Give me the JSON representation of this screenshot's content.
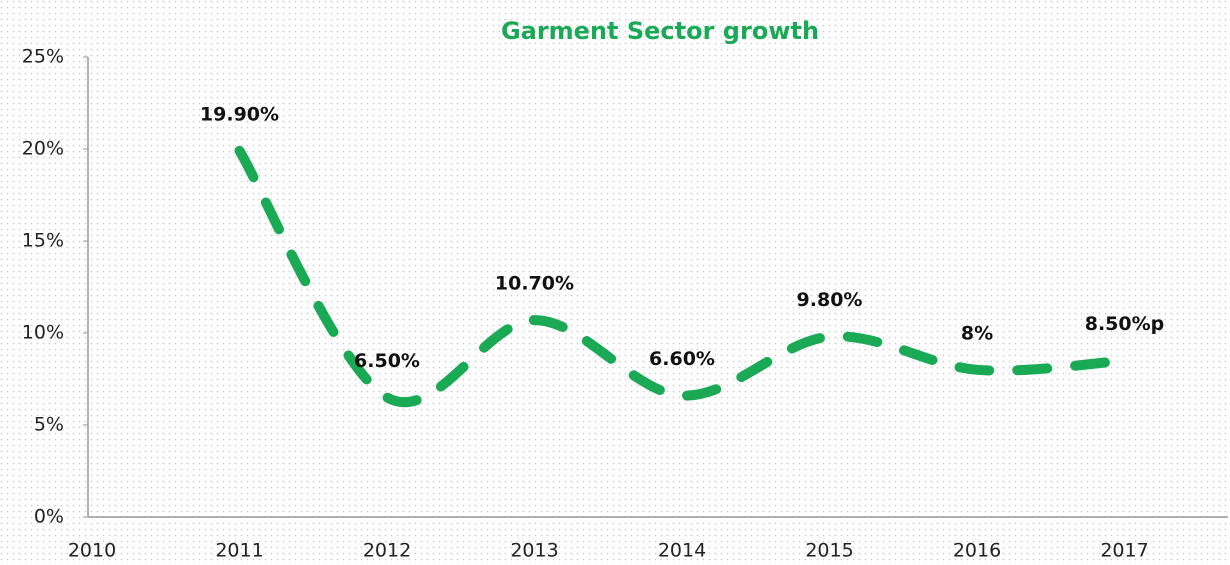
{
  "chart_data": {
    "type": "line",
    "title": "Garment Sector growth",
    "categories": [
      "2010",
      "2011",
      "2012",
      "2013",
      "2014",
      "2015",
      "2016",
      "2017"
    ],
    "series": [
      {
        "name": "Garment Sector growth",
        "color": "#1aaa55",
        "values": [
          null,
          19.9,
          6.5,
          10.7,
          6.6,
          9.8,
          8,
          8.5
        ],
        "value_labels": [
          null,
          "19.90%",
          "6.50%",
          "10.70%",
          "6.60%",
          "9.80%",
          "8%",
          "8.50%p"
        ]
      }
    ],
    "ylim": [
      0,
      25
    ],
    "yticks": [
      {
        "value": 0,
        "label": "0%"
      },
      {
        "value": 5,
        "label": "5%"
      },
      {
        "value": 10,
        "label": "10%"
      },
      {
        "value": 15,
        "label": "15%"
      },
      {
        "value": 20,
        "label": "20%"
      },
      {
        "value": 25,
        "label": "25%"
      }
    ],
    "grid": false,
    "line_style": "dashed",
    "smooth": true
  }
}
